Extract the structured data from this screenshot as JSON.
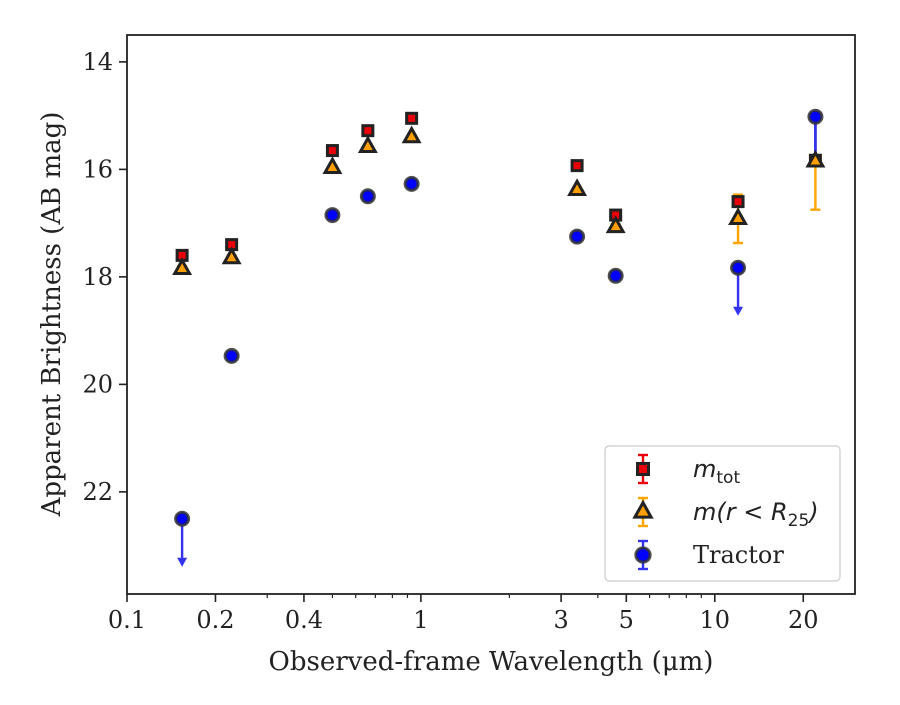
{
  "chart_data": {
    "type": "scatter",
    "title": "",
    "xlabel": "Observed-frame Wavelength (μm)",
    "ylabel": "Apparent Brightness (AB mag)",
    "xscale": "log",
    "xlim": [
      0.1,
      30
    ],
    "ylim": [
      23.9,
      13.5
    ],
    "y_inverted": true,
    "x_ticks": [
      0.1,
      0.2,
      0.4,
      1,
      3,
      5,
      10,
      20
    ],
    "x_tick_labels": [
      "0.1",
      "0.2",
      "0.4",
      "1",
      "3",
      "5",
      "10",
      "20"
    ],
    "y_ticks": [
      14,
      16,
      18,
      20,
      22
    ],
    "y_tick_labels": [
      "14",
      "16",
      "18",
      "20",
      "22"
    ],
    "grid": false,
    "legend_position": "lower-right",
    "series": [
      {
        "name": "m_tot",
        "marker": "square",
        "color": "#e8000b",
        "edge_color": "#222222",
        "errbar_color": "#e8000b",
        "points": [
          {
            "x": 0.154,
            "y": 17.6,
            "yerr": 0.05
          },
          {
            "x": 0.227,
            "y": 17.4,
            "yerr": 0.05
          },
          {
            "x": 0.5,
            "y": 15.65,
            "yerr": 0.04
          },
          {
            "x": 0.66,
            "y": 15.28,
            "yerr": 0.04
          },
          {
            "x": 0.93,
            "y": 15.05,
            "yerr": 0.04
          },
          {
            "x": 3.4,
            "y": 15.93,
            "yerr": 0.04
          },
          {
            "x": 4.6,
            "y": 16.85,
            "yerr": 0.05
          },
          {
            "x": 12.0,
            "y": 16.6,
            "yerr": 0.05
          },
          {
            "x": 22.0,
            "y": 15.83,
            "yerr": 0.08
          }
        ]
      },
      {
        "name": "m(r < R_25)",
        "marker": "triangle",
        "color": "#ff9f00",
        "edge_color": "#222222",
        "errbar_color": "#ffa500",
        "points": [
          {
            "x": 0.154,
            "y": 17.85,
            "yerr": 0.05
          },
          {
            "x": 0.227,
            "y": 17.65,
            "yerr": 0.05
          },
          {
            "x": 0.5,
            "y": 15.97,
            "yerr": 0.04
          },
          {
            "x": 0.66,
            "y": 15.58,
            "yerr": 0.04
          },
          {
            "x": 0.93,
            "y": 15.4,
            "yerr": 0.04
          },
          {
            "x": 3.4,
            "y": 16.38,
            "yerr": 0.04
          },
          {
            "x": 4.6,
            "y": 17.07,
            "yerr": 0.05
          },
          {
            "x": 12.0,
            "y": 16.92,
            "yerr": 0.45
          },
          {
            "x": 22.0,
            "y": 15.85,
            "yerr": 0.9
          }
        ]
      },
      {
        "name": "Tractor",
        "marker": "circle",
        "color": "#0000ff",
        "edge_color": "#333333",
        "errbar_color": "#3333ee",
        "points": [
          {
            "x": 0.154,
            "y": 22.5,
            "yerr": 0.05,
            "upper_limit": true
          },
          {
            "x": 0.227,
            "y": 19.47,
            "yerr": 0.05
          },
          {
            "x": 0.5,
            "y": 16.85,
            "yerr": 0.04
          },
          {
            "x": 0.66,
            "y": 16.5,
            "yerr": 0.04
          },
          {
            "x": 0.93,
            "y": 16.27,
            "yerr": 0.04
          },
          {
            "x": 3.4,
            "y": 17.25,
            "yerr": 0.04
          },
          {
            "x": 4.6,
            "y": 17.98,
            "yerr": 0.05
          },
          {
            "x": 12.0,
            "y": 17.83,
            "yerr": 0.05,
            "upper_limit": true
          },
          {
            "x": 22.0,
            "y": 15.02,
            "yerr": 0.05,
            "errbar_to": 15.9
          }
        ]
      }
    ],
    "legend": [
      {
        "label_base": "m",
        "label_sub": "tot",
        "marker": "square"
      },
      {
        "label_base": "m(r < R",
        "label_sub": "25",
        "label_after": ")",
        "marker": "triangle"
      },
      {
        "label_base": "Tractor",
        "label_sub": "",
        "marker": "circle"
      }
    ]
  }
}
